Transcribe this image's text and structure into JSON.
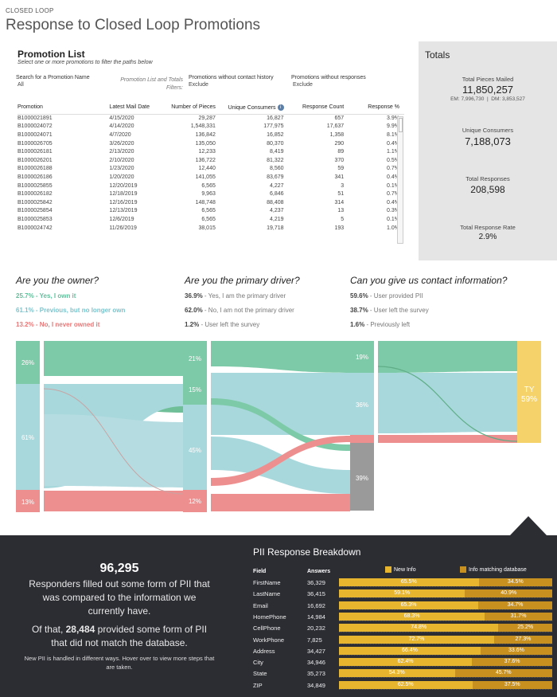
{
  "header": {
    "eyebrow": "CLOSED LOOP",
    "title": "Response to Closed Loop Promotions"
  },
  "promotion_list": {
    "heading": "Promotion List",
    "subheading": "Select one or more promotions to filter the paths below",
    "search_label": "Search for a Promotion Name",
    "search_value": "All",
    "filters_caption": "Promotion List and Totals Filters:",
    "filter1_label": "Promotions without contact history",
    "filter1_value": "Exclude",
    "filter2_label": "Promotions without responses",
    "filter2_value": "Exclude",
    "columns": [
      "Promotion",
      "Latest Mail Date",
      "Number of Pieces",
      "Unique Consumers",
      "Response Count",
      "Response %"
    ],
    "info_icon": "info-icon",
    "rows": [
      [
        "B1000021891",
        "4/15/2020",
        "29,287",
        "16,827",
        "657",
        "3.9%"
      ],
      [
        "B1000024072",
        "4/14/2020",
        "1,548,331",
        "177,975",
        "17,637",
        "9.9%"
      ],
      [
        "B1000024071",
        "4/7/2020",
        "136,842",
        "16,852",
        "1,358",
        "8.1%"
      ],
      [
        "B1000026705",
        "3/26/2020",
        "135,050",
        "80,370",
        "290",
        "0.4%"
      ],
      [
        "B1000026181",
        "2/13/2020",
        "12,233",
        "8,419",
        "89",
        "1.1%"
      ],
      [
        "B1000026201",
        "2/10/2020",
        "136,722",
        "81,322",
        "370",
        "0.5%"
      ],
      [
        "B1000026188",
        "1/23/2020",
        "12,440",
        "8,560",
        "59",
        "0.7%"
      ],
      [
        "B1000026186",
        "1/20/2020",
        "141,055",
        "83,679",
        "341",
        "0.4%"
      ],
      [
        "B1000025855",
        "12/20/2019",
        "6,565",
        "4,227",
        "3",
        "0.1%"
      ],
      [
        "B1000026182",
        "12/18/2019",
        "9,963",
        "6,846",
        "51",
        "0.7%"
      ],
      [
        "B1000025842",
        "12/16/2019",
        "148,748",
        "88,408",
        "314",
        "0.4%"
      ],
      [
        "B1000025854",
        "12/13/2019",
        "6,565",
        "4,237",
        "13",
        "0.3%"
      ],
      [
        "B1000025853",
        "12/6/2019",
        "6,565",
        "4,219",
        "5",
        "0.1%"
      ],
      [
        "B1000024742",
        "11/26/2019",
        "38,015",
        "19,718",
        "193",
        "1.0%"
      ]
    ]
  },
  "totals": {
    "heading": "Totals",
    "pieces_label": "Total Pieces Mailed",
    "pieces_value": "11,850,257",
    "pieces_breakdown": "EM: 7,996,730  |  DM: 3,853,527",
    "consumers_label": "Unique Consumers",
    "consumers_value": "7,188,073",
    "responses_label": "Total Responses",
    "responses_value": "208,598",
    "rate_label": "Total Response Rate",
    "rate_value": "2.9%"
  },
  "questions": [
    {
      "title": "Are you the owner?",
      "answers": [
        {
          "pct": "25.7%",
          "text": " - Yes, I own it",
          "color": "#5fbf9a"
        },
        {
          "pct": "61.1%",
          "text": " - Previous, but no longer own",
          "color": "#7cc4cc"
        },
        {
          "pct": "13.2%",
          "text": " - No, I never owned it",
          "color": "#e87878"
        }
      ]
    },
    {
      "title": "Are you the primary driver?",
      "answers": [
        {
          "pct": "36.9%",
          "text": " - Yes, I am the primary driver",
          "color": "#777"
        },
        {
          "pct": "62.0%",
          "text": " - No, I am not the primary driver",
          "color": "#777"
        },
        {
          "pct": "1.2%",
          "text": " - User left the survey",
          "color": "#777"
        }
      ]
    },
    {
      "title": "Can you give us contact information?",
      "answers": [
        {
          "pct": "59.6%",
          "text": " - User provided PII",
          "color": "#777"
        },
        {
          "pct": "38.7%",
          "text": " - User left the survey",
          "color": "#777"
        },
        {
          "pct": "1.6%",
          "text": " - Previously left",
          "color": "#777"
        }
      ]
    }
  ],
  "sankey": {
    "owner_labels": [
      "26%",
      "61%",
      "13%"
    ],
    "driver_labels": [
      "21%",
      "15%",
      "45%",
      "12%"
    ],
    "contact_labels": [
      "19%",
      "36%",
      "39%"
    ],
    "final_label_line1": "TY",
    "final_label_line2": "59%",
    "colors": {
      "green": "#7dcaa8",
      "blue": "#a9d8dc",
      "red": "#ee8f8f",
      "gray": "#9a9a9a",
      "yellow": "#f5d36a"
    }
  },
  "pii": {
    "big_number": "96,295",
    "desc1": "Responders filled out some form of PII that was compared to the information we currently have.",
    "desc2_prefix": "Of that, ",
    "desc2_number": "28,484",
    "desc2_suffix": " provided some form of PII that did not match the database.",
    "note": "New PII is handled in different ways. Hover over to view more steps that are taken.",
    "heading": "PII Response Breakdown",
    "col_field": "Field",
    "col_answers": "Answers",
    "legend_new": "New Info",
    "legend_match": "Info matching database",
    "color_new": "#e8b52e",
    "color_match": "#c8901e",
    "rows": [
      {
        "field": "FirstName",
        "answers": "36,329",
        "new": 65.5,
        "new_label": "65.5%",
        "match_label": "34.5%"
      },
      {
        "field": "LastName",
        "answers": "36,415",
        "new": 59.1,
        "new_label": "59.1%",
        "match_label": "40.9%"
      },
      {
        "field": "Email",
        "answers": "16,692",
        "new": 65.3,
        "new_label": "65.3%",
        "match_label": "34.7%"
      },
      {
        "field": "HomePhone",
        "answers": "14,984",
        "new": 68.3,
        "new_label": "68.3%",
        "match_label": "31.7%"
      },
      {
        "field": "CellPhone",
        "answers": "20,232",
        "new": 74.8,
        "new_label": "74.8%",
        "match_label": "25.2%"
      },
      {
        "field": "WorkPhone",
        "answers": "7,825",
        "new": 72.7,
        "new_label": "72.7%",
        "match_label": "27.3%"
      },
      {
        "field": "Address",
        "answers": "34,427",
        "new": 66.4,
        "new_label": "66.4%",
        "match_label": "33.6%"
      },
      {
        "field": "City",
        "answers": "34,946",
        "new": 62.4,
        "new_label": "62.4%",
        "match_label": "37.6%"
      },
      {
        "field": "State",
        "answers": "35,273",
        "new": 54.3,
        "new_label": "54.3%",
        "match_label": "45.7%"
      },
      {
        "field": "ZIP",
        "answers": "34,849",
        "new": 62.5,
        "new_label": "62.5%",
        "match_label": "37.5%"
      }
    ]
  }
}
